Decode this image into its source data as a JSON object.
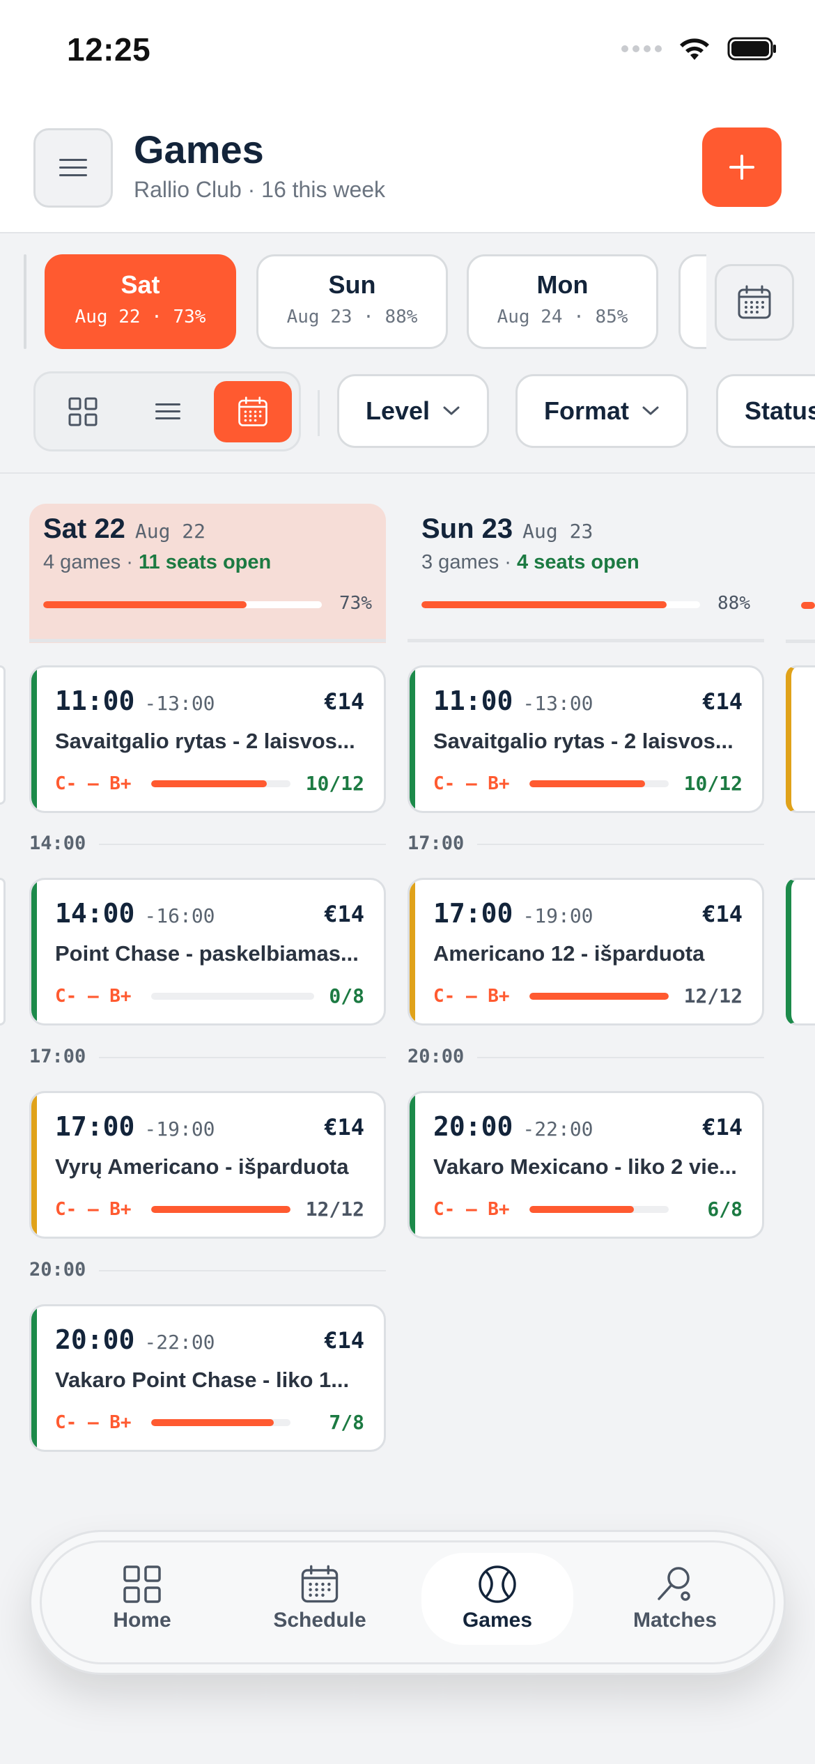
{
  "status_bar": {
    "time": "12:25"
  },
  "header": {
    "title": "Games",
    "subtitle": "Rallio Club · 16 this week"
  },
  "dates": [
    {
      "day": "Sat",
      "sub": "Aug 22 · 73%",
      "active": true
    },
    {
      "day": "Sun",
      "sub": "Aug 23 · 88%",
      "active": false
    },
    {
      "day": "Mon",
      "sub": "Aug 24 · 85%",
      "active": false
    }
  ],
  "filters": {
    "level": "Level",
    "format": "Format",
    "status": "Status"
  },
  "columns": [
    {
      "day": "Sat 22",
      "date": "Aug 22",
      "games": "4 games · ",
      "open": "11 seats open",
      "pct": "73%",
      "fill": 0.73,
      "cards": [
        {
          "start": "11:00",
          "end": "-13:00",
          "price": "€14",
          "name": "Savaitgalio rytas - 2 laisvos...",
          "level": "C- – B+",
          "count": "10/12",
          "fill": 0.83,
          "accent": "#1c8a4a",
          "count_color": "#1c7a42"
        },
        {
          "sep": "14:00",
          "start": "14:00",
          "end": "-16:00",
          "price": "€14",
          "name": "Point Chase - paskelbiamas...",
          "level": "C- – B+",
          "count": "0/8",
          "fill": 0.0,
          "accent": "#1c8a4a",
          "count_color": "#1c7a42"
        },
        {
          "sep": "17:00",
          "start": "17:00",
          "end": "-19:00",
          "price": "€14",
          "name": "Vyrų Americano - išparduota",
          "level": "C- – B+",
          "count": "12/12",
          "fill": 1.0,
          "accent": "#e0a21a",
          "count_color": "#4b5563"
        },
        {
          "sep": "20:00",
          "start": "20:00",
          "end": "-22:00",
          "price": "€14",
          "name": "Vakaro Point Chase - liko 1...",
          "level": "C- – B+",
          "count": "7/8",
          "fill": 0.88,
          "accent": "#1c8a4a",
          "count_color": "#1c7a42"
        }
      ]
    },
    {
      "day": "Sun 23",
      "date": "Aug 23",
      "games": "3 games · ",
      "open": "4 seats open",
      "pct": "88%",
      "fill": 0.88,
      "cards": [
        {
          "start": "11:00",
          "end": "-13:00",
          "price": "€14",
          "name": "Savaitgalio rytas - 2 laisvos...",
          "level": "C- – B+",
          "count": "10/12",
          "fill": 0.83,
          "accent": "#1c8a4a",
          "count_color": "#1c7a42"
        },
        {
          "sep": "17:00",
          "start": "17:00",
          "end": "-19:00",
          "price": "€14",
          "name": "Americano 12 - išparduota",
          "level": "C- – B+",
          "count": "12/12",
          "fill": 1.0,
          "accent": "#e0a21a",
          "count_color": "#4b5563"
        },
        {
          "sep": "20:00",
          "start": "20:00",
          "end": "-22:00",
          "price": "€14",
          "name": "Vakaro Mexicano - liko 2 vie...",
          "level": "C- – B+",
          "count": "6/8",
          "fill": 0.75,
          "accent": "#1c8a4a",
          "count_color": "#1c7a42"
        }
      ]
    }
  ],
  "nav": [
    {
      "label": "Home",
      "icon": "grid-icon",
      "active": false
    },
    {
      "label": "Schedule",
      "icon": "calendar-icon",
      "active": false
    },
    {
      "label": "Games",
      "icon": "ball-icon",
      "active": true
    },
    {
      "label": "Matches",
      "icon": "racket-icon",
      "active": false
    }
  ],
  "colors": {
    "accent": "#ff5a30",
    "navy": "#13243a",
    "green": "#1c7a42",
    "amber": "#e0a21a"
  }
}
